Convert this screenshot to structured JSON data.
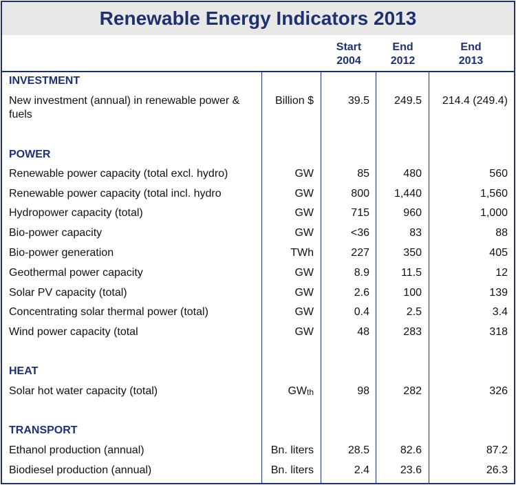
{
  "title": "Renewable Energy Indicators 2013",
  "columns": {
    "c1": [
      "Start",
      "2004"
    ],
    "c2": [
      "End",
      "2012"
    ],
    "c3": [
      "End",
      "2013"
    ]
  },
  "sections": {
    "investment": "INVESTMENT",
    "power": "POWER",
    "heat": "HEAT",
    "transport": "TRANSPORT"
  },
  "rows": {
    "investment": [
      {
        "label": "New investment (annual) in renewable power & fuels",
        "unit": "Billion $",
        "v2004": "39.5",
        "v2012": "249.5",
        "v2013": "214.4 (249.4)"
      }
    ],
    "power": [
      {
        "label": "Renewable power capacity (total excl. hydro)",
        "unit": "GW",
        "v2004": "85",
        "v2012": "480",
        "v2013": "560"
      },
      {
        "label": "Renewable power capacity (total incl. hydro",
        "unit": "GW",
        "v2004": "800",
        "v2012": "1,440",
        "v2013": "1,560"
      },
      {
        "label": "Hydropower capacity (total)",
        "unit": "GW",
        "v2004": "715",
        "v2012": "960",
        "v2013": "1,000"
      },
      {
        "label": "Bio-power capacity",
        "unit": "GW",
        "v2004": "<36",
        "v2012": "83",
        "v2013": "88"
      },
      {
        "label": "Bio-power generation",
        "unit": "TWh",
        "v2004": "227",
        "v2012": "350",
        "v2013": "405"
      },
      {
        "label": "Geothermal power capacity",
        "unit": "GW",
        "v2004": "8.9",
        "v2012": "11.5",
        "v2013": "12"
      },
      {
        "label": "Solar PV capacity (total)",
        "unit": "GW",
        "v2004": "2.6",
        "v2012": "100",
        "v2013": "139"
      },
      {
        "label": "Concentrating solar thermal power (total)",
        "unit": "GW",
        "v2004": "0.4",
        "v2012": "2.5",
        "v2013": "3.4"
      },
      {
        "label": "Wind power capacity (total",
        "unit": "GW",
        "v2004": "48",
        "v2012": "283",
        "v2013": "318"
      }
    ],
    "heat": [
      {
        "label": "Solar hot water capacity (total)",
        "unit_main": "GW",
        "unit_sub": "th",
        "v2004": "98",
        "v2012": "282",
        "v2013": "326"
      }
    ],
    "transport": [
      {
        "label": "Ethanol production (annual)",
        "unit": "Bn. liters",
        "v2004": "28.5",
        "v2012": "82.6",
        "v2013": "87.2"
      },
      {
        "label": "Biodiesel production (annual)",
        "unit": "Bn. liters",
        "v2004": "2.4",
        "v2012": "23.6",
        "v2013": "26.3"
      }
    ]
  }
}
